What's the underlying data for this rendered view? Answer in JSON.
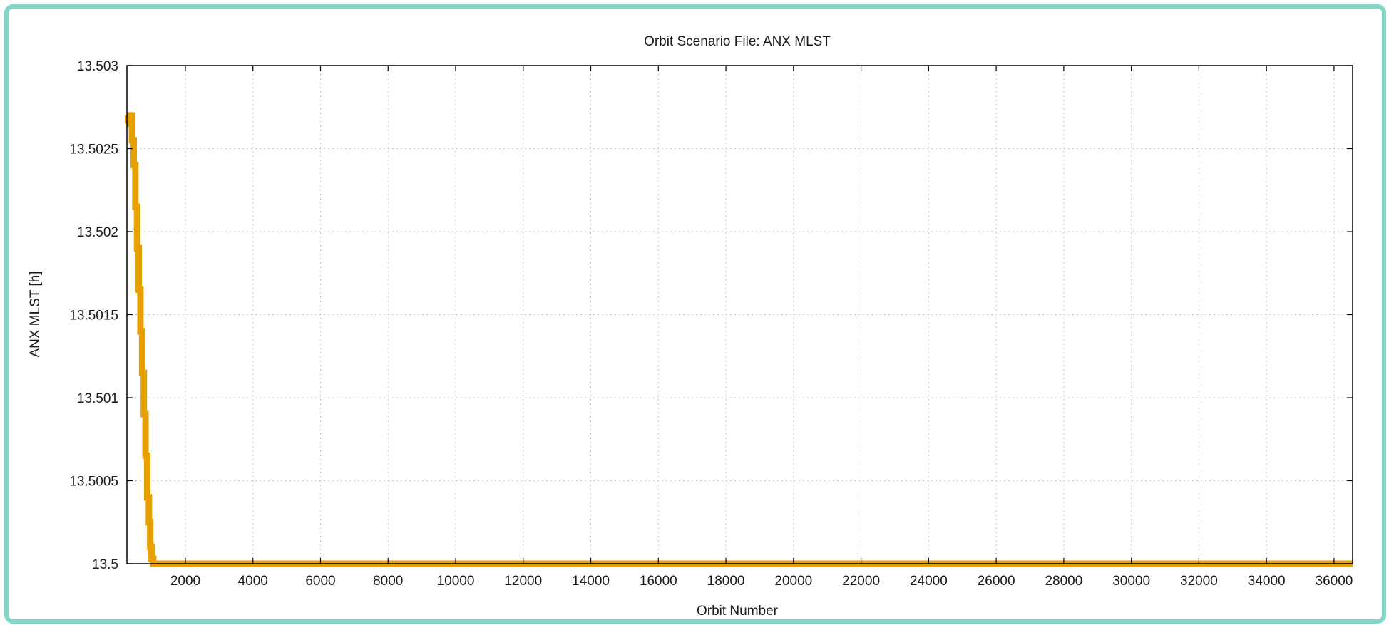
{
  "chart_data": {
    "type": "line",
    "title": "Orbit Scenario File: ANX MLST",
    "xlabel": "Orbit Number",
    "ylabel": "ANX MLST [h]",
    "xlim": [
      270,
      36550
    ],
    "ylim": [
      13.5,
      13.503
    ],
    "xticks": [
      2000,
      4000,
      6000,
      8000,
      10000,
      12000,
      14000,
      16000,
      18000,
      20000,
      22000,
      24000,
      26000,
      28000,
      30000,
      32000,
      34000,
      36000
    ],
    "xtick_labels": [
      "2000",
      "4000",
      "6000",
      "8000",
      "10000",
      "12000",
      "14000",
      "16000",
      "18000",
      "20000",
      "22000",
      "24000",
      "26000",
      "28000",
      "30000",
      "32000",
      "34000",
      "36000"
    ],
    "yticks": [
      13.5,
      13.5005,
      13.501,
      13.5015,
      13.502,
      13.5025,
      13.503
    ],
    "ytick_labels": [
      "13.5",
      "13.5005",
      "13.501",
      "13.5015",
      "13.502",
      "13.5025",
      "13.503"
    ],
    "grid": true,
    "series": [
      {
        "color": "#e6a000",
        "x": [
          270,
          300,
          360,
          420,
          470,
          520,
          570,
          620,
          670,
          720,
          770,
          820,
          870,
          920,
          960,
          1000,
          1050,
          1100,
          36550
        ],
        "y": [
          13.50265,
          13.50268,
          13.5027,
          13.50255,
          13.5024,
          13.50215,
          13.5019,
          13.50165,
          13.5014,
          13.50115,
          13.5009,
          13.50065,
          13.5004,
          13.50025,
          13.5001,
          13.50003,
          13.5,
          13.5,
          13.5
        ]
      }
    ]
  }
}
